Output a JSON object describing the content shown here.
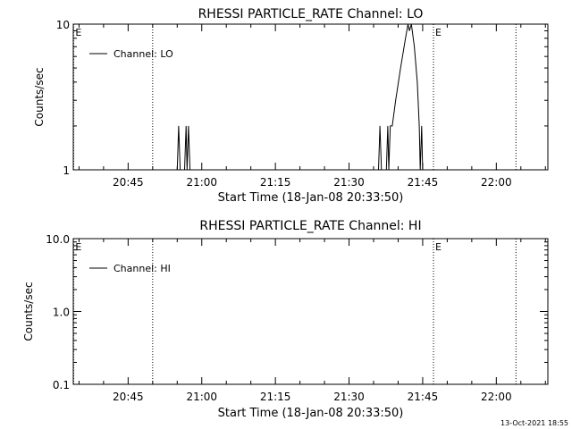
{
  "footer": {
    "timestamp": "13-Oct-2021 18:55"
  },
  "chart_data": [
    {
      "type": "line",
      "title": "RHESSI PARTICLE_RATE Channel: LO",
      "xlabel": "Start Time (18-Jan-08 20:33:50)",
      "ylabel": "Counts/sec",
      "x_ticks": [
        "20:45",
        "21:00",
        "21:15",
        "21:30",
        "21:45",
        "22:00"
      ],
      "x_tick_minutes": [
        45,
        60,
        75,
        90,
        105,
        120
      ],
      "xlim_minutes": [
        33.83,
        130.5
      ],
      "yscale": "log",
      "ylim": [
        1,
        10
      ],
      "y_ticks": [
        "1",
        "10"
      ],
      "y_tick_values": [
        1,
        10
      ],
      "legend": {
        "label": "Channel: LO",
        "position": "top-left"
      },
      "event_markers": [
        {
          "minute": 50.0,
          "label": ""
        },
        {
          "minute": 124.0,
          "label": ""
        }
      ],
      "end_markers": [
        {
          "minute": 33.9,
          "label": "E"
        },
        {
          "minute": 107.2,
          "label": "E"
        }
      ],
      "series": [
        {
          "name": "Channel: LO",
          "points": [
            [
              55.0,
              1
            ],
            [
              55.3,
              2
            ],
            [
              55.6,
              1
            ],
            [
              56.5,
              1
            ],
            [
              56.8,
              2
            ],
            [
              57.0,
              1
            ],
            [
              57.3,
              2
            ],
            [
              57.6,
              1
            ],
            [
              58.0,
              1
            ],
            [
              96.0,
              1
            ],
            [
              96.3,
              2
            ],
            [
              96.6,
              1
            ],
            [
              97.6,
              1
            ],
            [
              97.9,
              2
            ],
            [
              98.1,
              1
            ],
            [
              98.4,
              2
            ],
            [
              98.8,
              2
            ],
            [
              99.5,
              3
            ],
            [
              100.5,
              5
            ],
            [
              101.5,
              8
            ],
            [
              102.0,
              10
            ],
            [
              102.3,
              9
            ],
            [
              102.7,
              10
            ],
            [
              103.3,
              7
            ],
            [
              103.9,
              4
            ],
            [
              104.3,
              2
            ],
            [
              104.5,
              1
            ],
            [
              104.8,
              2
            ],
            [
              105.0,
              1
            ]
          ]
        }
      ]
    },
    {
      "type": "line",
      "title": "RHESSI PARTICLE_RATE Channel: HI",
      "xlabel": "Start Time (18-Jan-08 20:33:50)",
      "ylabel": "Counts/sec",
      "x_ticks": [
        "20:45",
        "21:00",
        "21:15",
        "21:30",
        "21:45",
        "22:00"
      ],
      "x_tick_minutes": [
        45,
        60,
        75,
        90,
        105,
        120
      ],
      "xlim_minutes": [
        33.83,
        130.5
      ],
      "yscale": "log",
      "ylim": [
        0.1,
        10
      ],
      "y_ticks": [
        "0.1",
        "1.0",
        "10.0"
      ],
      "y_tick_values": [
        0.1,
        1,
        10
      ],
      "legend": {
        "label": "Channel: HI",
        "position": "top-left"
      },
      "event_markers": [
        {
          "minute": 50.0,
          "label": ""
        },
        {
          "minute": 124.0,
          "label": ""
        }
      ],
      "end_markers": [
        {
          "minute": 33.9,
          "label": "E"
        },
        {
          "minute": 107.2,
          "label": "E"
        }
      ],
      "series": [
        {
          "name": "Channel: HI",
          "points": []
        }
      ]
    }
  ]
}
